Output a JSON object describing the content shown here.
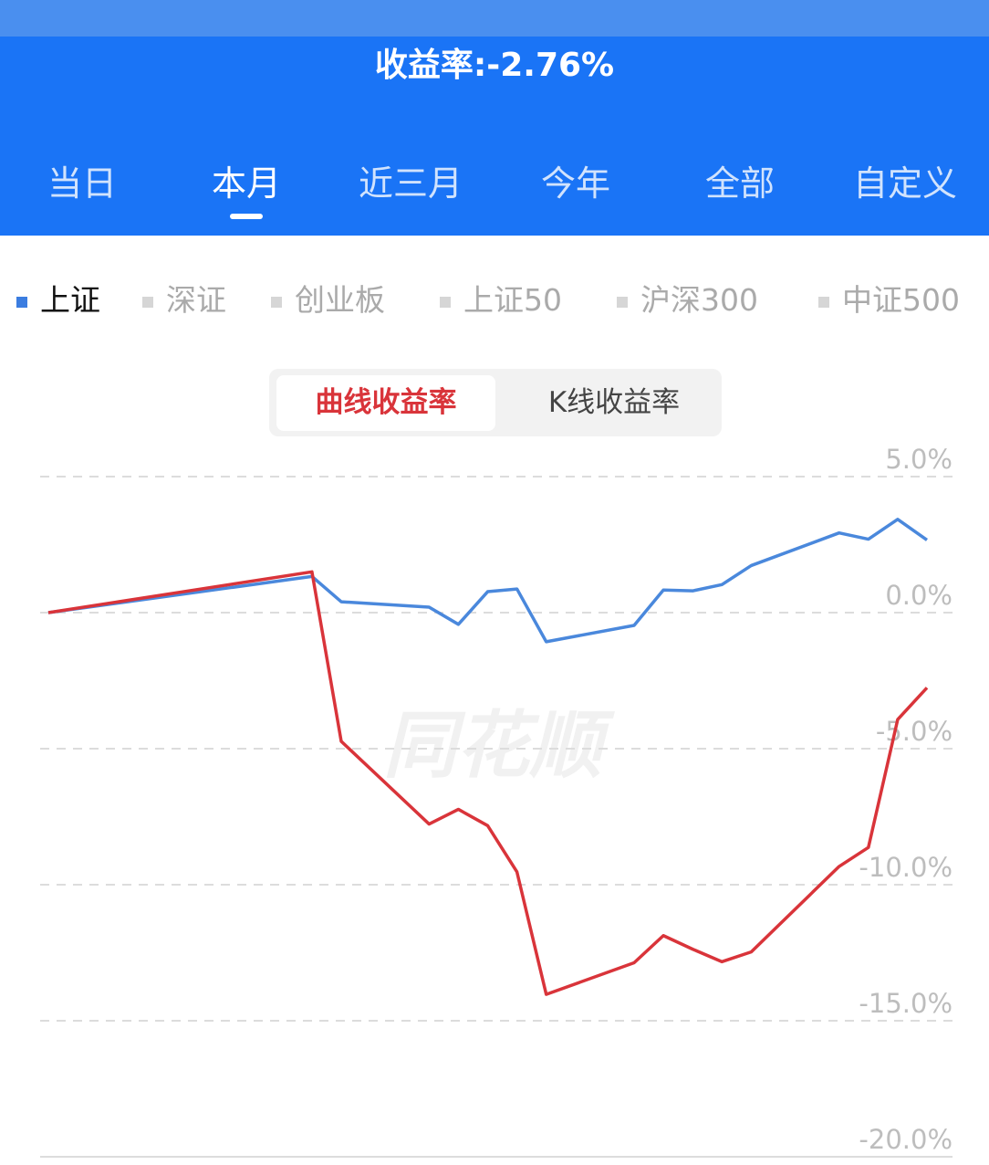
{
  "header": {
    "title": "收益率:-2.76%",
    "tabs": [
      "当日",
      "本月",
      "近三月",
      "今年",
      "全部",
      "自定义"
    ],
    "active_tab": 1
  },
  "legend": [
    {
      "label": "上证",
      "color": "#3b7de0",
      "active": true
    },
    {
      "label": "深证",
      "color": "#d6d6d6",
      "active": false
    },
    {
      "label": "创业板",
      "color": "#d6d6d6",
      "active": false
    },
    {
      "label": "上证50",
      "color": "#d6d6d6",
      "active": false
    },
    {
      "label": "沪深300",
      "color": "#d6d6d6",
      "active": false
    },
    {
      "label": "中证500",
      "color": "#d6d6d6",
      "active": false
    }
  ],
  "toggle": {
    "options": [
      "曲线收益率",
      "K线收益率"
    ],
    "active": 0
  },
  "watermark": "同花顺",
  "chart_data": {
    "type": "line",
    "x": [
      0,
      9,
      10,
      13,
      14,
      15,
      16,
      17,
      20,
      21,
      22,
      23,
      24,
      27,
      28,
      29,
      30
    ],
    "xlim": [
      0,
      30
    ],
    "series": [
      {
        "name": "上证",
        "color": "#4a88dc",
        "values": [
          0,
          1.33,
          0.4,
          0.2,
          -0.43,
          0.77,
          0.87,
          -1.07,
          -0.47,
          0.83,
          0.8,
          1.03,
          1.73,
          2.93,
          2.7,
          3.43,
          2.67
        ]
      },
      {
        "color": "#d9343a",
        "values": [
          0,
          1.5,
          -4.73,
          -7.77,
          -7.23,
          -7.83,
          -9.53,
          -14.03,
          -12.87,
          -11.87,
          -12.37,
          -12.83,
          -12.47,
          -9.33,
          -8.63,
          -3.93,
          -2.76
        ]
      }
    ],
    "ylim": [
      -20,
      5
    ],
    "yticks": [
      {
        "value": 5,
        "label": "5.0%"
      },
      {
        "value": 0,
        "label": "0.0%"
      },
      {
        "value": -5,
        "label": "-5.0%"
      },
      {
        "value": -10,
        "label": "-10.0%"
      },
      {
        "value": -15,
        "label": "-15.0%"
      },
      {
        "value": -20,
        "label": "-20.0%"
      }
    ],
    "grid": true
  }
}
